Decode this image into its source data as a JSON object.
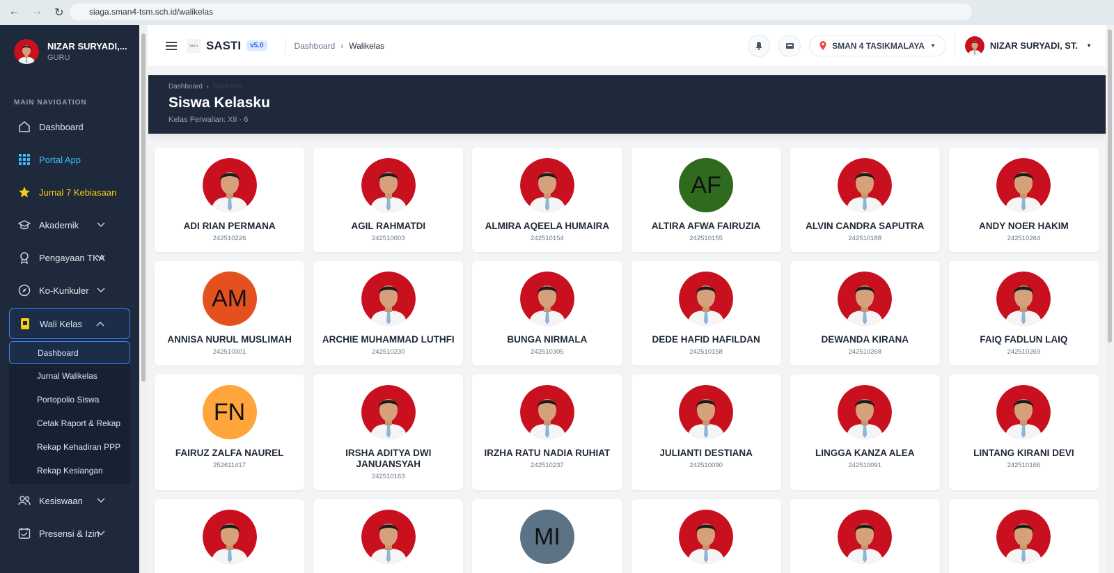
{
  "browser": {
    "url": "siaga.sman4-tsm.sch.id/walikelas"
  },
  "sidebar": {
    "user_name": "NIZAR SURYADI,...",
    "user_role": "GURU",
    "section_label": "MAIN NAVIGATION",
    "menu": [
      {
        "label": "Dashboard"
      },
      {
        "label": "Portal App",
        "color": "#38bdf8"
      },
      {
        "label": "Jurnal 7 Kebiasaan",
        "color": "#facc15"
      },
      {
        "label": "Akademik",
        "expandable": true
      },
      {
        "label": "Pengayaan TKA",
        "expandable": true
      },
      {
        "label": "Ko-Kurikuler",
        "expandable": true
      },
      {
        "label": "Wali Kelas",
        "expandable": true,
        "submenu": [
          "Dashboard",
          "Jurnal Walikelas",
          "Portopolio Siswa",
          "Cetak Raport & Rekap",
          "Rekap Kehadiran PPP",
          "Rekap Kesiangan"
        ]
      },
      {
        "label": "Kesiswaan",
        "expandable": true
      },
      {
        "label": "Presensi & Izin",
        "expandable": true
      }
    ]
  },
  "header": {
    "logo_text": "SASTI",
    "brand": "SASTI",
    "version": "v5.0",
    "breadcrumb": [
      "Dashboard",
      "Walikelas"
    ],
    "school": "SMAN 4 TASIKMALAYA",
    "user_name": "NIZAR SURYADI, ST."
  },
  "banner": {
    "breadcrumb": [
      "Dashboard",
      "Walikelas"
    ],
    "title": "Siswa Kelasku",
    "subtitle": "Kelas Perwalian: XII - 6"
  },
  "students": [
    {
      "name": "ADI RIAN PERMANA",
      "nis": "242510226"
    },
    {
      "name": "AGIL RAHMATDI",
      "nis": "242510003"
    },
    {
      "name": "ALMIRA AQEELA HUMAIRA",
      "nis": "242510154"
    },
    {
      "name": "ALTIRA AFWA FAIRUZIA",
      "nis": "242510155",
      "initials": "AF",
      "color": "#2f6a1e"
    },
    {
      "name": "ALVIN CANDRA SAPUTRA",
      "nis": "242510188"
    },
    {
      "name": "ANDY NOER HAKIM",
      "nis": "242510264"
    },
    {
      "name": "ANNISA NURUL MUSLIMAH",
      "nis": "242510301",
      "initials": "AM",
      "color": "#e4501e"
    },
    {
      "name": "ARCHIE MUHAMMAD LUTHFI",
      "nis": "242510230"
    },
    {
      "name": "BUNGA NIRMALA",
      "nis": "242510305"
    },
    {
      "name": "DEDE HAFID HAFILDAN",
      "nis": "242510158"
    },
    {
      "name": "DEWANDA KIRANA",
      "nis": "242510268"
    },
    {
      "name": "FAIQ FADLUN LAIQ",
      "nis": "242510269"
    },
    {
      "name": "FAIRUZ ZALFA NAUREL",
      "nis": "252611417",
      "initials": "FN",
      "color": "#ffa53b"
    },
    {
      "name": "IRSHA ADITYA DWI JANUANSYAH",
      "nis": "242510163"
    },
    {
      "name": "IRZHA RATU NADIA RUHIAT",
      "nis": "242510237"
    },
    {
      "name": "JULIANTI DESTIANA",
      "nis": "242510090"
    },
    {
      "name": "LINGGA KANZA ALEA",
      "nis": "242510091"
    },
    {
      "name": "LINTANG KIRANI DEVI",
      "nis": "242510166"
    }
  ],
  "students_partial": [
    {},
    {},
    {
      "initials": "MI",
      "color": "#5b7384"
    },
    {},
    {},
    {}
  ]
}
